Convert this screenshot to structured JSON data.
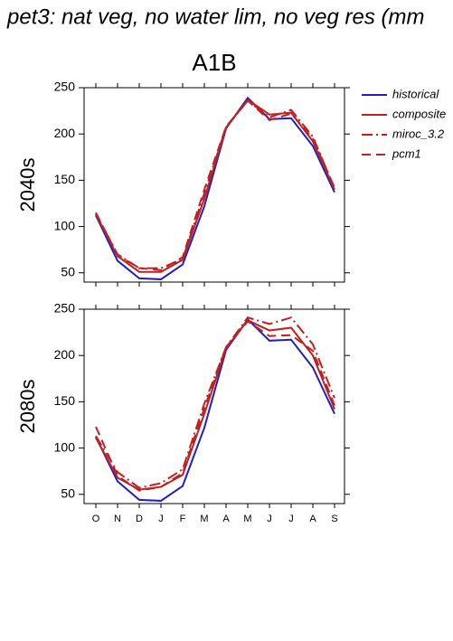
{
  "title": "pet3: nat veg, no water lim, no veg res (mm",
  "chart_data": [
    {
      "type": "line",
      "title": "A1B",
      "ylabel": "2040s",
      "categories": [
        null,
        null,
        null,
        null,
        null,
        null,
        null,
        null,
        null,
        null,
        null,
        null
      ],
      "ylim": [
        40,
        250
      ],
      "yticks": [
        50,
        100,
        150,
        200,
        250
      ],
      "legend": "outside-right",
      "series": [
        {
          "name": "historical",
          "color": "#2020c0",
          "dash": "solid",
          "values": [
            112,
            63,
            44,
            43,
            59,
            122,
            206,
            239,
            216,
            217,
            187,
            137
          ]
        },
        {
          "name": "composite",
          "color": "#c02020",
          "dash": "solid",
          "values": [
            113,
            68,
            51,
            51,
            64,
            130,
            207,
            237,
            221,
            223,
            192,
            140
          ]
        },
        {
          "name": "miroc_3.2",
          "color": "#c02020",
          "dash": "dash-dot",
          "values": [
            114,
            70,
            55,
            55,
            65,
            136,
            207,
            236,
            218,
            226,
            197,
            141
          ]
        },
        {
          "name": "pcm1",
          "color": "#c02020",
          "dash": "dash",
          "values": [
            115,
            69,
            55,
            53,
            67,
            140,
            208,
            236,
            215,
            222,
            195,
            142
          ]
        }
      ]
    },
    {
      "type": "line",
      "ylabel": "2080s",
      "categories": [
        "O",
        "N",
        "D",
        "J",
        "F",
        "M",
        "A",
        "M",
        "J",
        "J",
        "A",
        "S"
      ],
      "ylim": [
        40,
        250
      ],
      "yticks": [
        50,
        100,
        150,
        200,
        250
      ],
      "series": [
        {
          "color": "#2020c0",
          "dash": "solid",
          "values": [
            112,
            64,
            44,
            43,
            59,
            122,
            206,
            239,
            216,
            217,
            187,
            137
          ]
        },
        {
          "color": "#c02020",
          "dash": "solid",
          "values": [
            111,
            68,
            55,
            58,
            71,
            137,
            208,
            238,
            227,
            230,
            200,
            142
          ]
        },
        {
          "color": "#c02020",
          "dash": "dash-dot",
          "values": [
            113,
            74,
            57,
            62,
            77,
            148,
            209,
            241,
            234,
            241,
            212,
            154
          ]
        },
        {
          "color": "#c02020",
          "dash": "dash",
          "values": [
            123,
            70,
            54,
            58,
            73,
            143,
            209,
            237,
            221,
            222,
            205,
            146
          ]
        }
      ]
    }
  ]
}
